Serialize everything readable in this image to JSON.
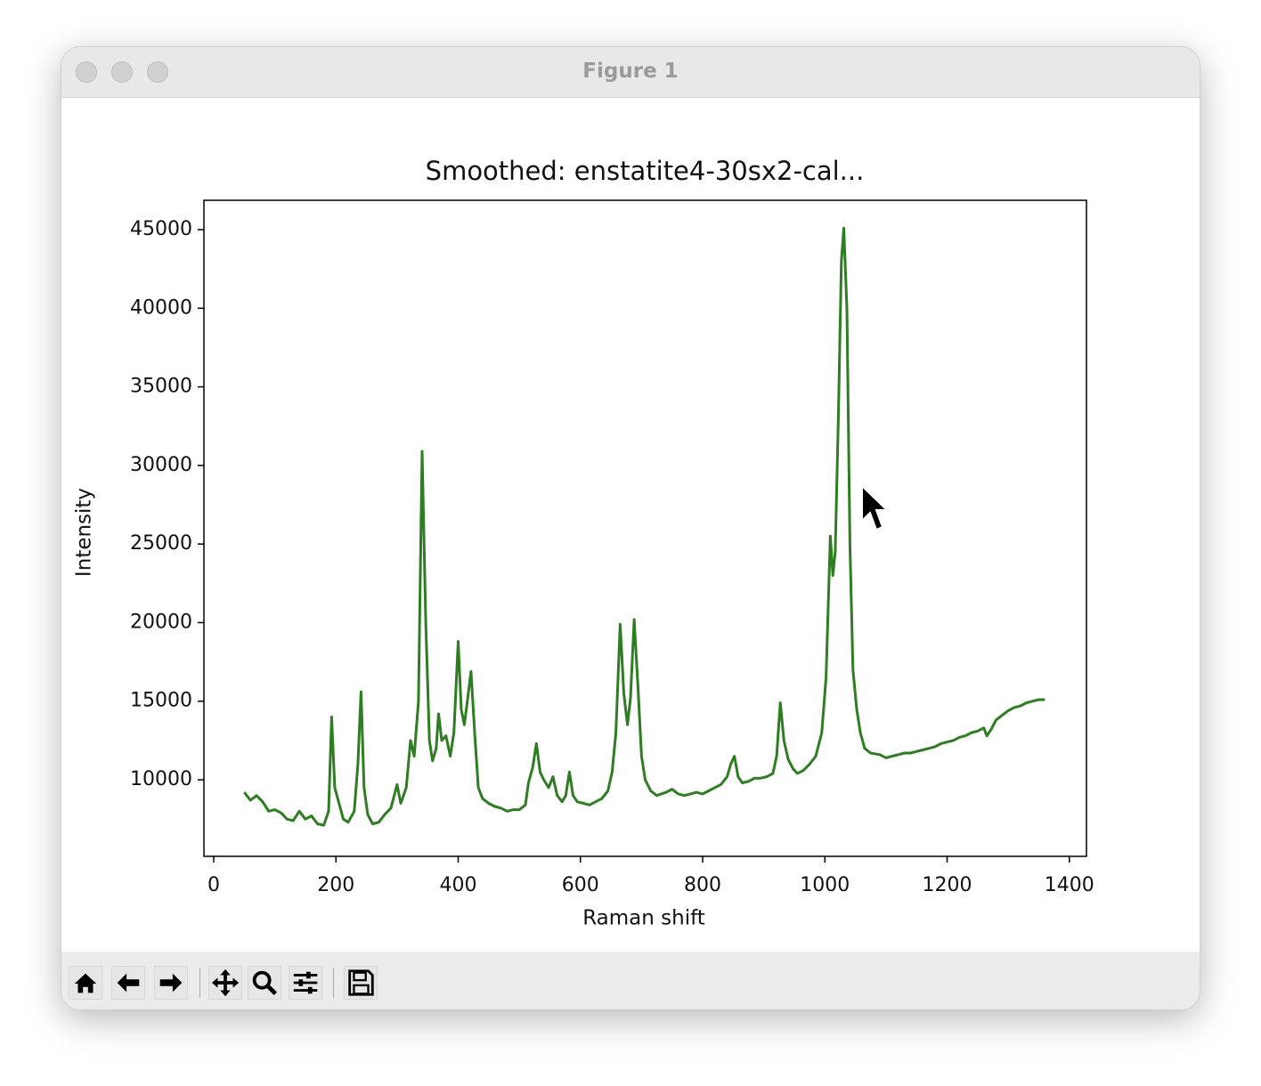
{
  "window": {
    "title": "Figure 1"
  },
  "chart_data": {
    "type": "line",
    "title": "Smoothed: enstatite4-30sx2-cal...",
    "x_label": "Raman shift",
    "y_label": "Intensity",
    "color": "#2e7d22",
    "xlim": [
      -16,
      1428
    ],
    "ylim": [
      5130,
      46870
    ],
    "xticks": [
      0,
      200,
      400,
      600,
      800,
      1000,
      1200,
      1400
    ],
    "yticks": [
      10000,
      15000,
      20000,
      25000,
      30000,
      35000,
      40000,
      45000
    ],
    "x": [
      50,
      60,
      70,
      80,
      90,
      100,
      110,
      120,
      130,
      140,
      150,
      160,
      170,
      180,
      188,
      193,
      198,
      205,
      212,
      220,
      230,
      236,
      241,
      246,
      252,
      260,
      270,
      280,
      290,
      300,
      306,
      315,
      322,
      328,
      335,
      341,
      347,
      353,
      358,
      364,
      368,
      373,
      380,
      387,
      393,
      400,
      405,
      410,
      415,
      421,
      427,
      433,
      440,
      450,
      460,
      470,
      480,
      490,
      500,
      510,
      515,
      522,
      528,
      534,
      540,
      548,
      555,
      562,
      570,
      576,
      582,
      588,
      595,
      605,
      615,
      625,
      635,
      645,
      652,
      658,
      665,
      671,
      677,
      682,
      688,
      694,
      700,
      706,
      715,
      725,
      740,
      750,
      760,
      770,
      780,
      790,
      800,
      810,
      820,
      830,
      840,
      846,
      852,
      858,
      865,
      875,
      885,
      895,
      905,
      915,
      921,
      927,
      933,
      940,
      948,
      955,
      965,
      975,
      985,
      995,
      1002,
      1009,
      1013,
      1017,
      1022,
      1027,
      1031,
      1036,
      1041,
      1046,
      1052,
      1058,
      1065,
      1075,
      1090,
      1100,
      1110,
      1120,
      1130,
      1140,
      1150,
      1160,
      1170,
      1180,
      1190,
      1200,
      1210,
      1220,
      1230,
      1240,
      1250,
      1260,
      1265,
      1272,
      1280,
      1290,
      1300,
      1310,
      1320,
      1330,
      1340,
      1350,
      1360
    ],
    "values": [
      9200,
      8700,
      9000,
      8600,
      8000,
      8100,
      7900,
      7500,
      7400,
      8000,
      7500,
      7700,
      7200,
      7100,
      8000,
      14000,
      9500,
      8500,
      7500,
      7300,
      8000,
      11000,
      15600,
      9500,
      7800,
      7200,
      7300,
      7800,
      8200,
      9700,
      8500,
      9500,
      12500,
      11500,
      15000,
      30900,
      20000,
      12500,
      11200,
      12000,
      14200,
      12500,
      12800,
      11500,
      13000,
      18800,
      14500,
      13500,
      15000,
      16900,
      13000,
      9500,
      8800,
      8500,
      8300,
      8200,
      8000,
      8100,
      8100,
      8400,
      9800,
      10800,
      12300,
      10500,
      10000,
      9500,
      10200,
      9000,
      8600,
      9000,
      10500,
      9000,
      8600,
      8500,
      8400,
      8600,
      8800,
      9300,
      10500,
      13000,
      19900,
      15500,
      13500,
      15200,
      20200,
      16000,
      11500,
      10000,
      9300,
      9000,
      9200,
      9400,
      9100,
      9000,
      9100,
      9200,
      9100,
      9300,
      9500,
      9700,
      10200,
      11000,
      11500,
      10200,
      9800,
      9900,
      10100,
      10100,
      10200,
      10400,
      11500,
      14900,
      12500,
      11300,
      10700,
      10400,
      10600,
      11000,
      11500,
      13000,
      16500,
      25500,
      23000,
      24500,
      33000,
      43000,
      45100,
      40000,
      25000,
      17000,
      14500,
      13000,
      12000,
      11700,
      11600,
      11400,
      11500,
      11600,
      11700,
      11700,
      11800,
      11900,
      12000,
      12100,
      12300,
      12400,
      12500,
      12700,
      12800,
      13000,
      13100,
      13300,
      12800,
      13200,
      13800,
      14100,
      14400,
      14600,
      14700,
      14900,
      15000,
      15100,
      15100
    ]
  }
}
